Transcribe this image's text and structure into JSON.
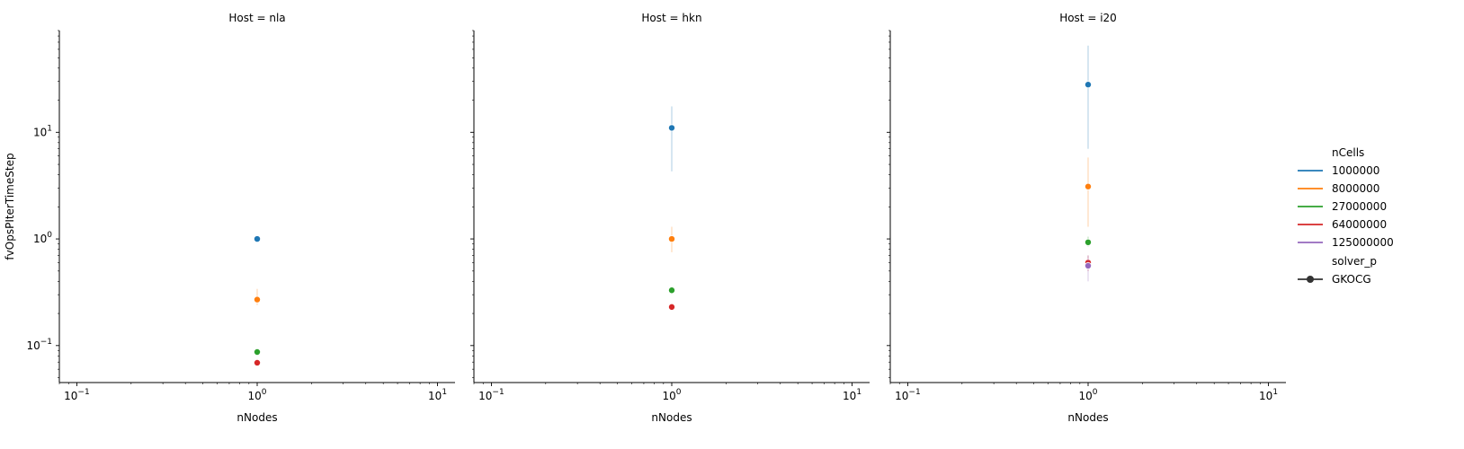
{
  "chart_data": {
    "type": "scatter",
    "x_scale": "log",
    "y_scale": "log",
    "xlim": [
      0.08,
      12.5
    ],
    "ylim": [
      0.045,
      90
    ],
    "x_ticks": [
      0.1,
      1,
      10
    ],
    "x_tick_labels": [
      [
        "10",
        "−1"
      ],
      [
        "10",
        "0"
      ],
      [
        "10",
        "1"
      ]
    ],
    "y_ticks": [
      0.1,
      1,
      10
    ],
    "y_tick_labels": [
      [
        "10",
        "−1"
      ],
      [
        "10",
        "0"
      ],
      [
        "10",
        "1"
      ]
    ],
    "xlabel": "nNodes",
    "ylabel": "fvOpsPIterTimeStep",
    "grid": false,
    "legend": {
      "placement": "right",
      "hue_title": "nCells",
      "hue_entries": [
        {
          "label": "1000000",
          "color": "#1f77b4"
        },
        {
          "label": "8000000",
          "color": "#ff7f0e"
        },
        {
          "label": "27000000",
          "color": "#2ca02c"
        },
        {
          "label": "64000000",
          "color": "#d62728"
        },
        {
          "label": "125000000",
          "color": "#9467bd"
        }
      ],
      "style_title": "solver_p",
      "style_entries": [
        {
          "label": "GKOCG",
          "marker": "circle",
          "color": "#333333"
        }
      ]
    },
    "panels": [
      {
        "title": "Host = nla",
        "points": [
          {
            "nCells": "1000000",
            "x": 1,
            "y": 1.0,
            "err": [
              1.0,
              1.0
            ],
            "color": "#1f77b4"
          },
          {
            "nCells": "8000000",
            "x": 1,
            "y": 0.27,
            "err": [
              0.24,
              0.34
            ],
            "color": "#ff7f0e"
          },
          {
            "nCells": "27000000",
            "x": 1,
            "y": 0.087,
            "err": [
              0.083,
              0.092
            ],
            "color": "#2ca02c"
          },
          {
            "nCells": "64000000",
            "x": 1,
            "y": 0.069,
            "err": [
              0.066,
              0.072
            ],
            "color": "#d62728"
          }
        ]
      },
      {
        "title": "Host = hkn",
        "points": [
          {
            "nCells": "1000000",
            "x": 1,
            "y": 11.0,
            "err": [
              4.3,
              17.5
            ],
            "color": "#1f77b4"
          },
          {
            "nCells": "8000000",
            "x": 1,
            "y": 1.0,
            "err": [
              0.75,
              1.3
            ],
            "color": "#ff7f0e"
          },
          {
            "nCells": "27000000",
            "x": 1,
            "y": 0.33,
            "err": [
              0.31,
              0.35
            ],
            "color": "#2ca02c"
          },
          {
            "nCells": "64000000",
            "x": 1,
            "y": 0.23,
            "err": [
              0.22,
              0.24
            ],
            "color": "#d62728"
          }
        ]
      },
      {
        "title": "Host = i20",
        "points": [
          {
            "nCells": "1000000",
            "x": 1,
            "y": 28.0,
            "err": [
              7.0,
              65.0
            ],
            "color": "#1f77b4"
          },
          {
            "nCells": "8000000",
            "x": 1,
            "y": 3.1,
            "err": [
              1.3,
              5.8
            ],
            "color": "#ff7f0e"
          },
          {
            "nCells": "27000000",
            "x": 1,
            "y": 0.93,
            "err": [
              0.85,
              1.05
            ],
            "color": "#2ca02c"
          },
          {
            "nCells": "64000000",
            "x": 1,
            "y": 0.6,
            "err": [
              0.5,
              0.7
            ],
            "color": "#d62728"
          },
          {
            "nCells": "125000000",
            "x": 1,
            "y": 0.56,
            "err": [
              0.4,
              0.7
            ],
            "color": "#9467bd"
          }
        ]
      }
    ]
  }
}
